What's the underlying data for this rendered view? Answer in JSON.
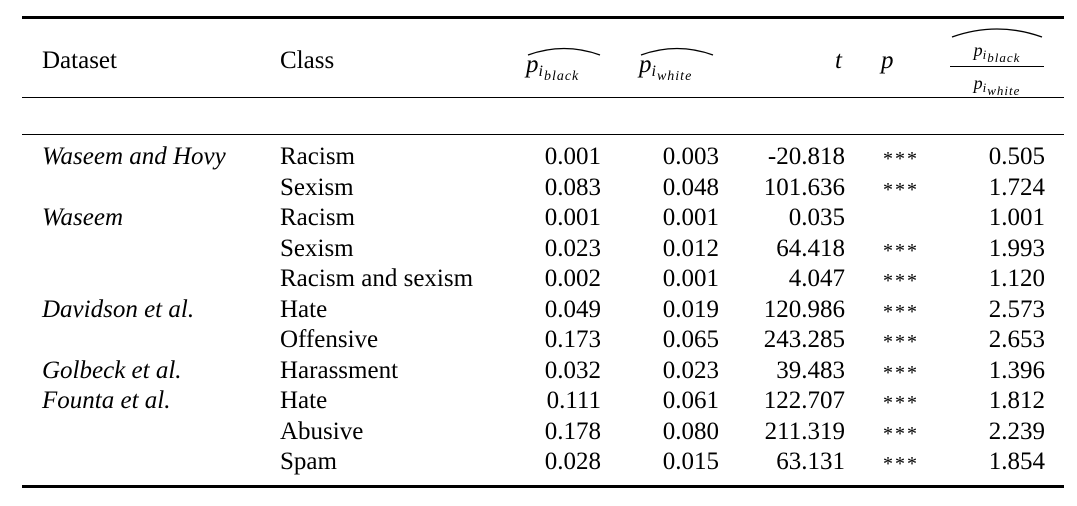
{
  "table": {
    "headers": {
      "dataset": "Dataset",
      "class": "Class",
      "p_black_base": "p",
      "p_black_sub1": "i",
      "p_black_sub2": "black",
      "p_white_base": "p",
      "p_white_sub1": "i",
      "p_white_sub2": "white",
      "t": "t",
      "p": "p",
      "ratio_num_base": "p",
      "ratio_num_sub1": "i",
      "ratio_num_sub2": "black",
      "ratio_den_base": "p",
      "ratio_den_sub1": "i",
      "ratio_den_sub2": "white"
    },
    "rows": [
      {
        "dataset": "Waseem and Hovy",
        "class": "Racism",
        "p_black": "0.001",
        "p_white": "0.003",
        "t": "-20.818",
        "p": "***",
        "ratio": "0.505"
      },
      {
        "dataset": "",
        "class": "Sexism",
        "p_black": "0.083",
        "p_white": "0.048",
        "t": "101.636",
        "p": "***",
        "ratio": "1.724"
      },
      {
        "dataset": "Waseem",
        "class": "Racism",
        "p_black": "0.001",
        "p_white": "0.001",
        "t": "0.035",
        "p": "",
        "ratio": "1.001"
      },
      {
        "dataset": "",
        "class": "Sexism",
        "p_black": "0.023",
        "p_white": "0.012",
        "t": "64.418",
        "p": "***",
        "ratio": "1.993"
      },
      {
        "dataset": "",
        "class": "Racism and sexism",
        "p_black": "0.002",
        "p_white": "0.001",
        "t": "4.047",
        "p": "***",
        "ratio": "1.120"
      },
      {
        "dataset": "Davidson et al.",
        "class": "Hate",
        "p_black": "0.049",
        "p_white": "0.019",
        "t": "120.986",
        "p": "***",
        "ratio": "2.573"
      },
      {
        "dataset": "",
        "class": "Offensive",
        "p_black": "0.173",
        "p_white": "0.065",
        "t": "243.285",
        "p": "***",
        "ratio": "2.653"
      },
      {
        "dataset": "Golbeck et al.",
        "class": "Harassment",
        "p_black": "0.032",
        "p_white": "0.023",
        "t": "39.483",
        "p": "***",
        "ratio": "1.396"
      },
      {
        "dataset": "Founta et al.",
        "class": "Hate",
        "p_black": "0.111",
        "p_white": "0.061",
        "t": "122.707",
        "p": "***",
        "ratio": "1.812"
      },
      {
        "dataset": "",
        "class": "Abusive",
        "p_black": "0.178",
        "p_white": "0.080",
        "t": "211.319",
        "p": "***",
        "ratio": "2.239"
      },
      {
        "dataset": "",
        "class": "Spam",
        "p_black": "0.028",
        "p_white": "0.015",
        "t": "63.131",
        "p": "***",
        "ratio": "1.854"
      }
    ]
  }
}
